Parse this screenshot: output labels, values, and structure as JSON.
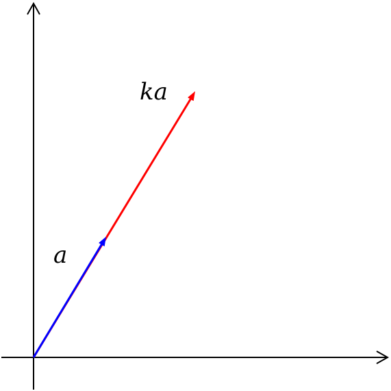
{
  "diagram": {
    "labels": {
      "vector_a": "a",
      "vector_ka": "ka"
    },
    "colors": {
      "axes": "#000000",
      "vector_a": "#0000ff",
      "vector_ka": "#ff0000"
    }
  }
}
